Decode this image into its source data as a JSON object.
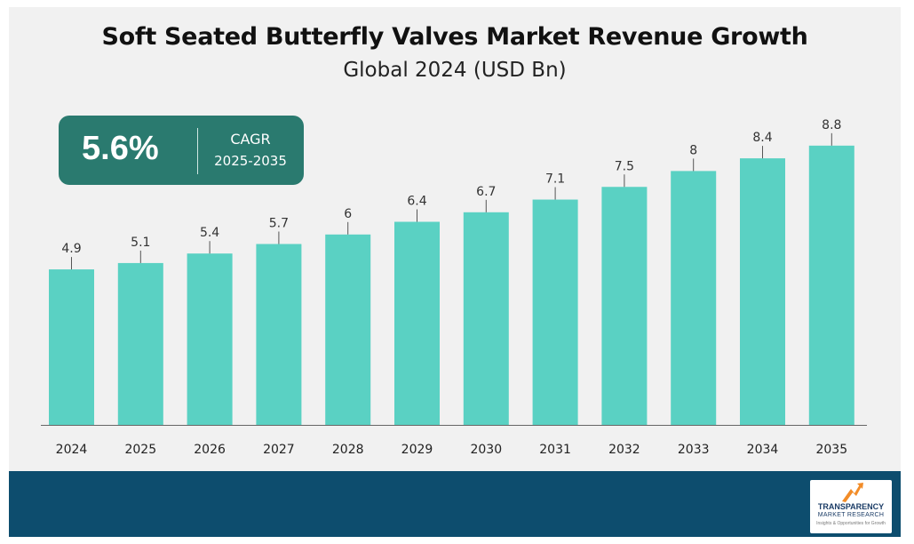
{
  "title": "Soft Seated Butterfly Valves Market Revenue Growth",
  "subtitle": "Global 2024 (USD Bn)",
  "cagr": {
    "value": "5.6%",
    "label": "CAGR",
    "period": "2025-2035"
  },
  "logo": {
    "line1": "TRANSPARENCY",
    "line2": "MARKET RESEARCH",
    "line3": "Insights & Opportunities for Growth"
  },
  "colors": {
    "bar": "#5ad1c3",
    "leader": "#555555",
    "axis": "#666666",
    "cagr_box": "#2a7a6f",
    "footer": "#0d4d6e",
    "background": "#f1f1f1"
  },
  "chart_data": {
    "type": "bar",
    "categories": [
      "2024",
      "2025",
      "2026",
      "2027",
      "2028",
      "2029",
      "2030",
      "2031",
      "2032",
      "2033",
      "2034",
      "2035"
    ],
    "values": [
      4.9,
      5.1,
      5.4,
      5.7,
      6,
      6.4,
      6.7,
      7.1,
      7.5,
      8,
      8.4,
      8.8
    ],
    "title": "Soft Seated Butterfly Valves Market Revenue Growth",
    "subtitle": "Global 2024 (USD Bn)",
    "xlabel": "",
    "ylabel": "",
    "data_labels": true,
    "grid": false,
    "legend": "none"
  }
}
